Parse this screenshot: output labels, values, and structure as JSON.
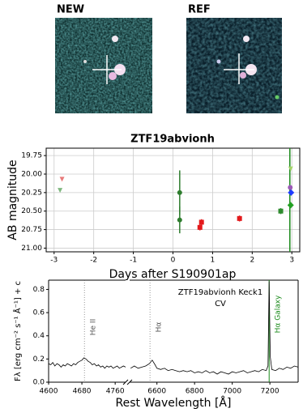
{
  "panels": {
    "new_label": "NEW",
    "ref_label": "REF"
  },
  "chart_data": [
    {
      "type": "scatter",
      "title": "ZTF19abvionh",
      "x_label": "Days after S190901ap",
      "y_label": "AB magnitude",
      "xlim": [
        -3.2,
        3.2
      ],
      "xticks": [
        -3,
        -2,
        -1,
        0,
        1,
        2,
        3
      ],
      "ylim": [
        21.05,
        19.65
      ],
      "yticks": [
        {
          "value": 19.75,
          "label": "19.75"
        },
        {
          "value": 20,
          "label": "20.00"
        },
        {
          "value": 20.25,
          "label": "20.25"
        },
        {
          "value": 20.5,
          "label": "20.50"
        },
        {
          "value": 20.75,
          "label": "20.75"
        },
        {
          "value": 21,
          "label": "21.00"
        }
      ],
      "grid": true,
      "vline": {
        "x": 2.95,
        "color": "#1a8a1a"
      },
      "series": [
        {
          "color": "#e87a7a",
          "marker": "triangle",
          "x": [
            -2.8
          ],
          "values": [
            20.07
          ]
        },
        {
          "color": "#7fb77f",
          "marker": "triangle",
          "x": [
            -2.85
          ],
          "values": [
            20.22
          ]
        },
        {
          "color": "#2e7d2e",
          "marker": "circle",
          "x": [
            0.17,
            0.17
          ],
          "values": [
            20.25,
            20.62
          ],
          "errors": [
            0.3,
            0.18
          ]
        },
        {
          "color": "#e31a1c",
          "marker": "square",
          "x": [
            0.68,
            0.72,
            1.68
          ],
          "values": [
            20.72,
            20.65,
            20.6
          ],
          "errors": [
            0.04,
            0.04,
            0.04
          ]
        },
        {
          "color": "#2e8b2e",
          "marker": "square",
          "x": [
            2.72
          ],
          "values": [
            20.5
          ],
          "errors": [
            0.04
          ]
        },
        {
          "color": "#a5d46a",
          "marker": "triangle",
          "x": [
            2.97
          ],
          "values": [
            19.93
          ]
        },
        {
          "color": "#9b59b6",
          "marker": "circle",
          "x": [
            2.96
          ],
          "values": [
            20.18
          ]
        },
        {
          "color": "#1f3cff",
          "marker": "diamond",
          "x": [
            2.98
          ],
          "values": [
            20.25
          ]
        },
        {
          "color": "#22a022",
          "marker": "diamond",
          "x": [
            2.97
          ],
          "values": [
            20.42
          ]
        }
      ]
    },
    {
      "type": "line",
      "x_label": "Rest Wavelength [Å]",
      "y_label": "Fλ [erg cm⁻² s⁻¹ Å⁻¹] + c",
      "annotation": [
        "ZTF19abvionh Keck1",
        "CV"
      ],
      "xlim_segments": [
        [
          4600,
          4785
        ],
        [
          6455,
          7350
        ]
      ],
      "xticks": [
        4600,
        4680,
        4760,
        6600,
        6800,
        7000,
        7200
      ],
      "ylim": [
        0,
        0.88
      ],
      "yticks": [
        {
          "value": 0,
          "label": "0.0"
        },
        0.2,
        0.4,
        0.6,
        0.8
      ],
      "lines": [
        {
          "x": 4686,
          "label": "He II",
          "color": "#555555"
        },
        {
          "x": 6563,
          "label": "Hα",
          "color": "#555555"
        },
        {
          "x": 7196,
          "label": "Hα Galaxy",
          "color": "#1a8a1a"
        }
      ],
      "series": [
        {
          "color": "#000000",
          "x": [
            4600,
            4605,
            4610,
            4615,
            4620,
            4625,
            4630,
            4635,
            4640,
            4645,
            4650,
            4655,
            4660,
            4665,
            4670,
            4675,
            4680,
            4685,
            4690,
            4695,
            4700,
            4705,
            4710,
            4715,
            4720,
            4725,
            4730,
            4735,
            4740,
            4745,
            4750,
            4755,
            4760,
            4765,
            4770,
            4775,
            4780,
            4785
          ],
          "values": [
            0.16,
            0.15,
            0.17,
            0.14,
            0.16,
            0.15,
            0.13,
            0.15,
            0.14,
            0.16,
            0.15,
            0.14,
            0.16,
            0.15,
            0.17,
            0.18,
            0.19,
            0.21,
            0.2,
            0.18,
            0.17,
            0.15,
            0.16,
            0.14,
            0.15,
            0.13,
            0.14,
            0.12,
            0.14,
            0.13,
            0.14,
            0.12,
            0.13,
            0.14,
            0.12,
            0.13,
            0.14,
            0.13
          ]
        },
        {
          "color": "#000000",
          "x": [
            6460,
            6480,
            6500,
            6520,
            6540,
            6560,
            6575,
            6590,
            6600,
            6620,
            6640,
            6660,
            6680,
            6700,
            6720,
            6740,
            6760,
            6780,
            6800,
            6820,
            6840,
            6860,
            6880,
            6900,
            6920,
            6940,
            6960,
            6980,
            7000,
            7020,
            7040,
            7060,
            7080,
            7100,
            7120,
            7140,
            7160,
            7180,
            7190,
            7196,
            7202,
            7210,
            7230,
            7250,
            7270,
            7290,
            7310,
            7330,
            7350
          ],
          "values": [
            0.12,
            0.14,
            0.12,
            0.13,
            0.14,
            0.16,
            0.19,
            0.15,
            0.12,
            0.11,
            0.12,
            0.1,
            0.11,
            0.1,
            0.09,
            0.1,
            0.09,
            0.1,
            0.08,
            0.09,
            0.08,
            0.1,
            0.08,
            0.09,
            0.07,
            0.09,
            0.08,
            0.07,
            0.09,
            0.08,
            0.09,
            0.1,
            0.08,
            0.09,
            0.1,
            0.09,
            0.11,
            0.1,
            0.14,
            0.87,
            0.22,
            0.11,
            0.1,
            0.12,
            0.11,
            0.13,
            0.12,
            0.14,
            0.13
          ]
        }
      ]
    }
  ]
}
